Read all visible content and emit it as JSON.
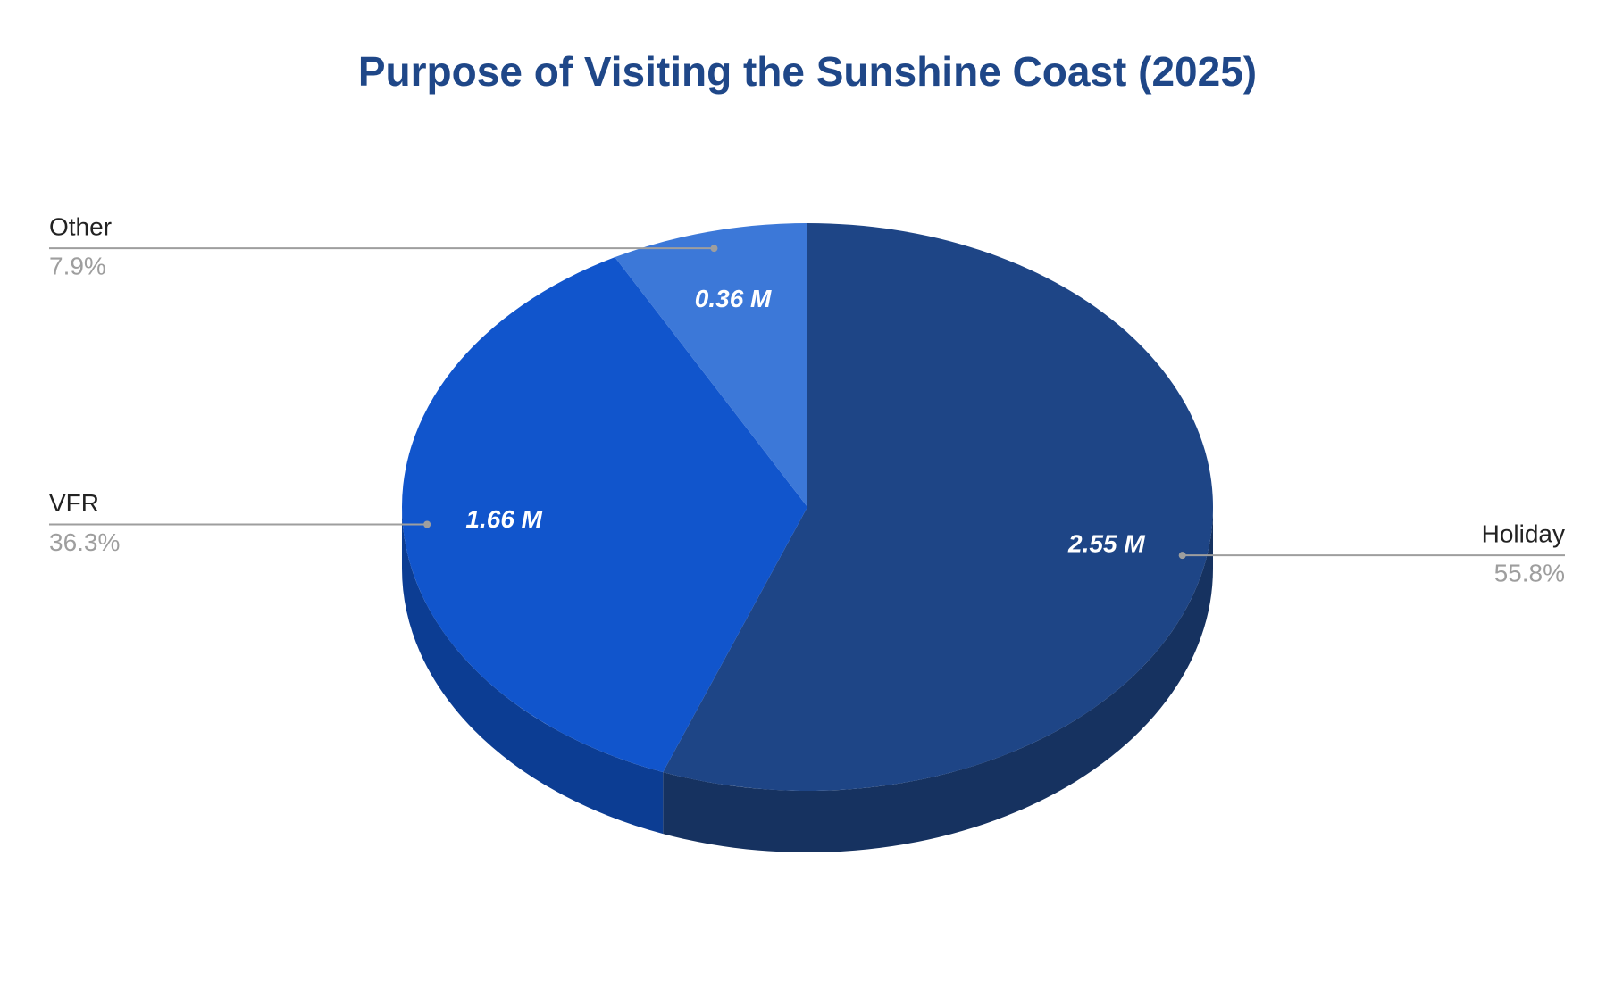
{
  "chart_data": {
    "type": "pie",
    "title": "Purpose of Visiting the Sunshine Coast (2025)",
    "categories": [
      "Holiday",
      "VFR",
      "Other"
    ],
    "values": [
      2.55,
      1.66,
      0.36
    ],
    "value_labels": [
      "2.55 M",
      "1.66 M",
      "0.36 M"
    ],
    "percentages": [
      55.8,
      36.3,
      7.9
    ],
    "percentage_labels": [
      "55.8%",
      "36.3%",
      "7.9%"
    ],
    "colors": [
      "#1e4586",
      "#1155cc",
      "#3c78d8"
    ],
    "three_d": true
  }
}
